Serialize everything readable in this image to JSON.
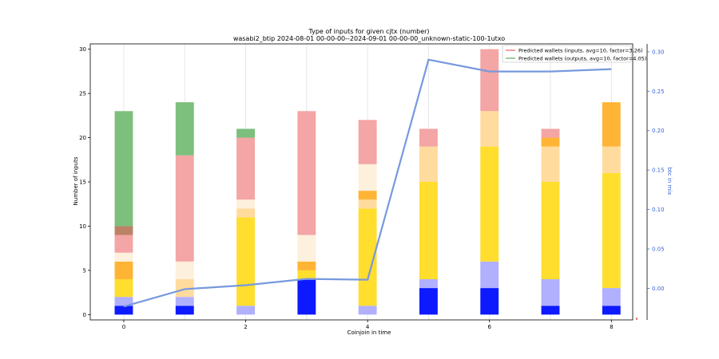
{
  "chart_data": {
    "type": "bar",
    "title": "Type of inputs for given cjtx (number)",
    "subtitle": "wasabi2_btip 2024-08-01 00-00-00--2024-09-01 00-00-00_unknown-static-100-1utxo",
    "xlabel": "Coinjoin in time",
    "ylabel": "Number of inputs",
    "y2label": "btc in mix",
    "x": [
      0,
      1,
      2,
      3,
      4,
      5,
      6,
      7,
      8
    ],
    "xticks": [
      0,
      2,
      4,
      6,
      8
    ],
    "yticks": [
      0,
      5,
      10,
      15,
      20,
      25,
      30
    ],
    "y2ticks": [
      "0.00",
      "0.05",
      "0.10",
      "0.15",
      "0.20",
      "0.25",
      "0.30"
    ],
    "ylim": [
      -0.6,
      30.6
    ],
    "y2lim": [
      -0.04,
      0.31
    ],
    "xlim": [
      -0.55,
      8.35
    ],
    "bar_width": 0.3,
    "colors": {
      "blue": "#0d1aff",
      "lightblue": "#b0b0ff",
      "gold": "#ffde2e",
      "orange": "#ffb435",
      "lightorange": "#ffdb9e",
      "cream": "#fdf0dc",
      "brown": "#bb8266",
      "pink": "#f4a5a5",
      "green": "#7dbf7d",
      "line": "#7799dd",
      "axis2": "#3a64d8"
    },
    "stacks": [
      [
        [
          "blue",
          1
        ],
        [
          "lightblue",
          1
        ],
        [
          "gold",
          2
        ],
        [
          "orange",
          2
        ],
        [
          "cream",
          1
        ],
        [
          "pink",
          2
        ],
        [
          "brown",
          1
        ],
        [
          "green",
          13
        ]
      ],
      [
        [
          "blue",
          1
        ],
        [
          "lightblue",
          1
        ],
        [
          "gold",
          0
        ],
        [
          "lightorange",
          2
        ],
        [
          "cream",
          2
        ],
        [
          "pink",
          12
        ],
        [
          "green",
          6
        ]
      ],
      [
        [
          "blue",
          0
        ],
        [
          "lightblue",
          1
        ],
        [
          "gold",
          10
        ],
        [
          "lightorange",
          1
        ],
        [
          "cream",
          1
        ],
        [
          "pink",
          7
        ],
        [
          "green",
          1
        ]
      ],
      [
        [
          "blue",
          4
        ],
        [
          "lightblue",
          0
        ],
        [
          "gold",
          1
        ],
        [
          "orange",
          1
        ],
        [
          "cream",
          3
        ],
        [
          "pink",
          14
        ]
      ],
      [
        [
          "blue",
          0
        ],
        [
          "lightblue",
          1
        ],
        [
          "gold",
          11
        ],
        [
          "lightorange",
          1
        ],
        [
          "orange",
          1
        ],
        [
          "cream",
          3
        ],
        [
          "pink",
          5
        ]
      ],
      [
        [
          "blue",
          3
        ],
        [
          "lightblue",
          1
        ],
        [
          "gold",
          11
        ],
        [
          "lightorange",
          4
        ],
        [
          "pink",
          2
        ]
      ],
      [
        [
          "blue",
          3
        ],
        [
          "lightblue",
          3
        ],
        [
          "gold",
          13
        ],
        [
          "lightorange",
          4
        ],
        [
          "pink",
          7
        ]
      ],
      [
        [
          "blue",
          1
        ],
        [
          "lightblue",
          3
        ],
        [
          "gold",
          11
        ],
        [
          "lightorange",
          4
        ],
        [
          "orange",
          1
        ],
        [
          "pink",
          1
        ]
      ],
      [
        [
          "blue",
          1
        ],
        [
          "lightblue",
          2
        ],
        [
          "gold",
          13
        ],
        [
          "lightorange",
          3
        ],
        [
          "orange",
          5
        ]
      ]
    ],
    "btc_in_mix": [
      -0.023,
      -0.001,
      0.004,
      0.012,
      0.011,
      0.29,
      0.275,
      0.275,
      0.278
    ],
    "legend": [
      {
        "label": "Predicted wallets (inputs, avg=10, factor=3.26)",
        "color": "#f08080"
      },
      {
        "label": "Predicted wallets (outputs, avg=10, factor=4.05)",
        "color": "#7dbf7d"
      }
    ],
    "legend_position": "top-right",
    "grid": "vertical lines at each x"
  }
}
